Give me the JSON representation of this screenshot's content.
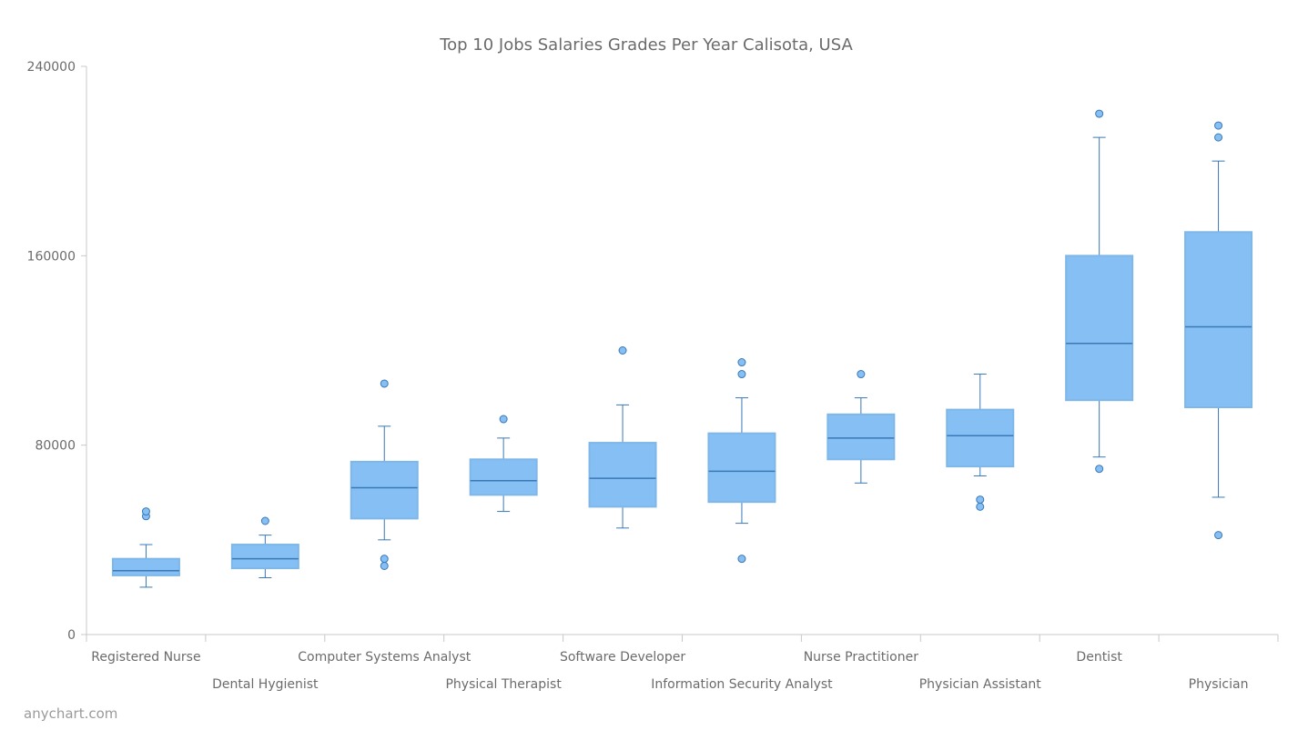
{
  "chart_data": {
    "type": "box",
    "title": "Top 10 Jobs Salaries Grades Per Year Calisota, USA",
    "xlabel": "",
    "ylabel": "",
    "ylim": [
      0,
      240000
    ],
    "yticks": [
      0,
      80000,
      160000,
      240000
    ],
    "grid": false,
    "colors": {
      "box_fill": "#85bff3",
      "box_stroke": "#7fb7e8",
      "median": "#3b78b5",
      "whisker": "#3b78b5",
      "outlier_fill": "#85bff3",
      "outlier_stroke": "#3b78b5",
      "axis": "#c8c8c8",
      "text": "#6b6b6b"
    },
    "categories": [
      "Registered Nurse",
      "Dental Hygienist",
      "Computer Systems Analyst",
      "Physical Therapist",
      "Software Developer",
      "Information Security Analyst",
      "Nurse Practitioner",
      "Physician Assistant",
      "Dentist",
      "Physician"
    ],
    "boxes": [
      {
        "low": 20000,
        "q1": 25000,
        "median": 27000,
        "q3": 32000,
        "high": 38000,
        "outliers": [
          50000,
          52000
        ]
      },
      {
        "low": 24000,
        "q1": 28000,
        "median": 32000,
        "q3": 38000,
        "high": 42000,
        "outliers": [
          48000
        ]
      },
      {
        "low": 40000,
        "q1": 49000,
        "median": 62000,
        "q3": 73000,
        "high": 88000,
        "outliers": [
          29000,
          32000,
          106000
        ]
      },
      {
        "low": 52000,
        "q1": 59000,
        "median": 65000,
        "q3": 74000,
        "high": 83000,
        "outliers": [
          91000
        ]
      },
      {
        "low": 45000,
        "q1": 54000,
        "median": 66000,
        "q3": 81000,
        "high": 97000,
        "outliers": [
          120000
        ]
      },
      {
        "low": 47000,
        "q1": 56000,
        "median": 69000,
        "q3": 85000,
        "high": 100000,
        "outliers": [
          32000,
          110000,
          115000
        ]
      },
      {
        "low": 64000,
        "q1": 74000,
        "median": 83000,
        "q3": 93000,
        "high": 100000,
        "outliers": [
          110000
        ]
      },
      {
        "low": 67000,
        "q1": 71000,
        "median": 84000,
        "q3": 95000,
        "high": 110000,
        "outliers": [
          54000,
          57000
        ]
      },
      {
        "low": 75000,
        "q1": 99000,
        "median": 123000,
        "q3": 160000,
        "high": 210000,
        "outliers": [
          70000,
          220000
        ]
      },
      {
        "low": 58000,
        "q1": 96000,
        "median": 130000,
        "q3": 170000,
        "high": 200000,
        "outliers": [
          42000,
          210000,
          215000
        ]
      }
    ]
  },
  "credit": "anychart.com"
}
